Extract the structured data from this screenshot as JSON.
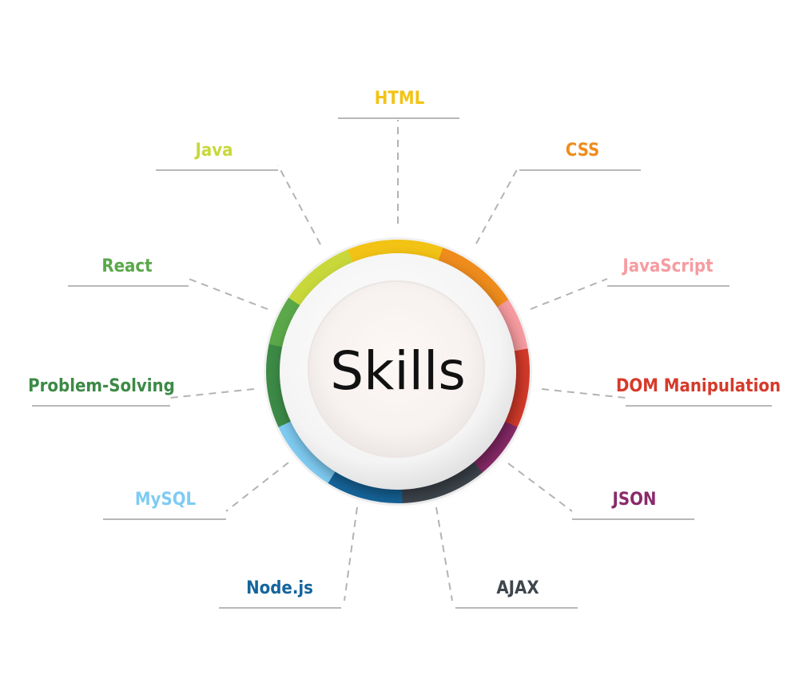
{
  "diagram": {
    "center_label": "Skills",
    "skills": [
      {
        "id": "html",
        "label": "HTML",
        "color": "#f2c314"
      },
      {
        "id": "css",
        "label": "CSS",
        "color": "#ef8c1c"
      },
      {
        "id": "javascript",
        "label": "JavaScript",
        "color": "#f79ba0"
      },
      {
        "id": "dom",
        "label": "DOM Manipulation",
        "color": "#d63a2a"
      },
      {
        "id": "json",
        "label": "JSON",
        "color": "#8a2a6a"
      },
      {
        "id": "ajax",
        "label": "AJAX",
        "color": "#3f464e"
      },
      {
        "id": "nodejs",
        "label": "Node.js",
        "color": "#15659c"
      },
      {
        "id": "mysql",
        "label": "MySQL",
        "color": "#7fcbf2"
      },
      {
        "id": "problem",
        "label": "Problem-Solving",
        "color": "#3c8a46"
      },
      {
        "id": "react",
        "label": "React",
        "color": "#5aa849"
      },
      {
        "id": "java",
        "label": "Java",
        "color": "#c8d83a"
      }
    ]
  }
}
